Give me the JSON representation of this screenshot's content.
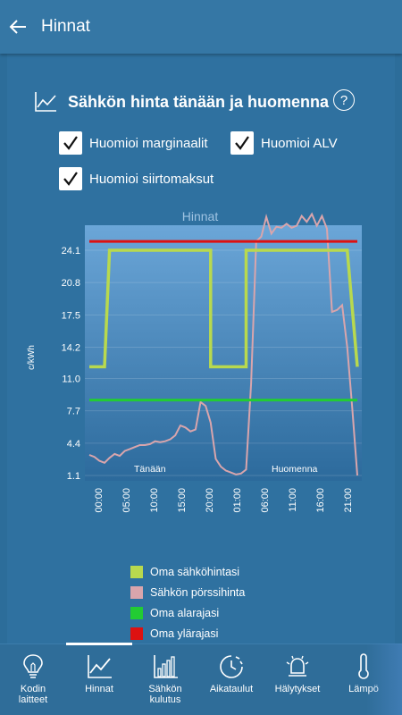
{
  "appbar": {
    "title": "Hinnat",
    "back_icon": "arrow-left-icon"
  },
  "section": {
    "title": "Sähkön hinta tänään ja huomenna",
    "icon": "line-chart-icon",
    "help": "?"
  },
  "checkboxes": [
    {
      "label": "Huomioi marginaalit",
      "checked": true
    },
    {
      "label": "Huomioi ALV",
      "checked": true
    },
    {
      "label": "Huomioi siirtomaksut",
      "checked": true
    }
  ],
  "chart_data": {
    "type": "line",
    "title": "Hinnat",
    "ylabel": "c/kWh",
    "xlabel": "",
    "yticks": [
      "24.1",
      "20.8",
      "17.5",
      "14.2",
      "11.0",
      "7.7",
      "4.4",
      "1.1"
    ],
    "xticks": [
      "00:00",
      "05:00",
      "10:00",
      "15:00",
      "20:00",
      "01:00",
      "06:00",
      "11:00",
      "16:00",
      "21:00"
    ],
    "ylim": [
      1.1,
      27.5
    ],
    "period_labels": [
      "Tänään",
      "Huomenna"
    ],
    "grid": true,
    "legend_position": "bottom",
    "colors": {
      "own_price": "#b8d94e",
      "spot": "#d9a5ac",
      "low": "#22cc33",
      "high": "#dd1111"
    },
    "series": [
      {
        "name": "Oma sähköhintasi",
        "color": "#b8d94e",
        "x": [
          0,
          3,
          3,
          4,
          4,
          24,
          24,
          27,
          27,
          31,
          31,
          51,
          51,
          53,
          53
        ],
        "values": [
          12.2,
          12.2,
          12.2,
          24.1,
          24.1,
          24.1,
          12.2,
          12.2,
          12.2,
          12.2,
          24.1,
          24.1,
          24.1,
          12.2,
          12.2
        ]
      },
      {
        "name": "Sähkön pörssihinta",
        "color": "#d9a5ac",
        "x": [
          0,
          1,
          2,
          3,
          4,
          5,
          6,
          7,
          8,
          9,
          10,
          11,
          12,
          13,
          14,
          15,
          16,
          17,
          18,
          19,
          20,
          21,
          22,
          23,
          24,
          25,
          26,
          27,
          28,
          29,
          30,
          31,
          32,
          33,
          34,
          35,
          36,
          37,
          38,
          39,
          40,
          41,
          42,
          43,
          44,
          45,
          46,
          47,
          48,
          49,
          50,
          51,
          52,
          53
        ],
        "values": [
          3.2,
          3.0,
          2.6,
          2.4,
          2.9,
          3.3,
          3.1,
          3.6,
          3.8,
          4.0,
          4.2,
          4.2,
          4.3,
          4.6,
          4.5,
          4.6,
          4.8,
          5.2,
          6.2,
          6.0,
          5.6,
          5.8,
          8.6,
          8.2,
          6.5,
          2.8,
          2.0,
          1.6,
          1.4,
          1.2,
          1.3,
          1.7,
          10.5,
          25.0,
          25.5,
          27.5,
          25.8,
          26.5,
          26.4,
          26.8,
          26.4,
          26.6,
          27.6,
          27.0,
          27.8,
          26.6,
          27.6,
          26.3,
          17.8,
          18.0,
          18.5,
          14.2,
          8.0,
          1.1
        ]
      },
      {
        "name": "Oma alarajasi",
        "color": "#22cc33",
        "x": [
          0,
          53
        ],
        "values": [
          8.8,
          8.8
        ]
      },
      {
        "name": "Oma ylärajasi",
        "color": "#dd1111",
        "x": [
          0,
          53
        ],
        "values": [
          25.0,
          25.0
        ]
      }
    ]
  },
  "legend": [
    {
      "label": "Oma sähköhintasi",
      "color": "#b8d94e"
    },
    {
      "label": "Sähkön pörssihinta",
      "color": "#d9a5ac"
    },
    {
      "label": "Oma alarajasi",
      "color": "#22cc33"
    },
    {
      "label": "Oma ylärajasi",
      "color": "#dd1111"
    }
  ],
  "nav": [
    {
      "label": "Kodin\nlaitteet",
      "icon": "lightbulb-icon",
      "active": false
    },
    {
      "label": "Hinnat",
      "icon": "line-chart-icon",
      "active": true
    },
    {
      "label": "Sähkön\nkulutus",
      "icon": "bar-chart-icon",
      "active": false
    },
    {
      "label": "Aikataulut",
      "icon": "clock-icon",
      "active": false
    },
    {
      "label": "Hälytykset",
      "icon": "alarm-icon",
      "active": false
    },
    {
      "label": "Lämpö",
      "icon": "thermometer-icon",
      "active": false
    }
  ]
}
